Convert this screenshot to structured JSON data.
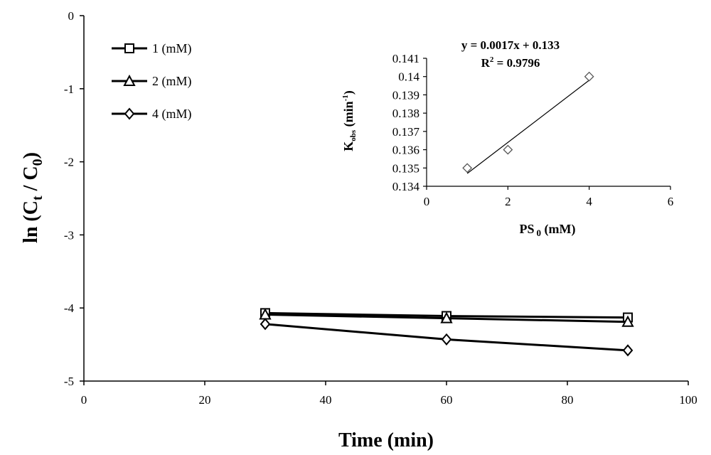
{
  "chart_data": [
    {
      "type": "line",
      "xlabel": "Time (min)",
      "ylabel_main": "ln (C",
      "ylabel_sub1": "t",
      "ylabel_mid": " / C",
      "ylabel_sub2": "0",
      "ylabel_end": ")",
      "xlim": [
        0,
        100
      ],
      "ylim": [
        -5,
        0
      ],
      "xticks": [
        0,
        20,
        40,
        60,
        80,
        100
      ],
      "yticks": [
        0,
        -1,
        -2,
        -3,
        -4,
        -5
      ],
      "grid": false,
      "legend_placement": "top-left",
      "series": [
        {
          "name": "1 (mM)",
          "marker": "square",
          "x": [
            30,
            60,
            90
          ],
          "y": [
            -4.07,
            -4.11,
            -4.13
          ]
        },
        {
          "name": "2 (mM)",
          "marker": "triangle",
          "x": [
            30,
            60,
            90
          ],
          "y": [
            -4.09,
            -4.14,
            -4.19
          ]
        },
        {
          "name": "4 (mM)",
          "marker": "diamond",
          "x": [
            30,
            60,
            90
          ],
          "y": [
            -4.22,
            -4.43,
            -4.58
          ]
        }
      ]
    },
    {
      "type": "scatter",
      "xlabel_main": "PS",
      "xlabel_sub": "0",
      "xlabel_end": " (mM)",
      "ylabel_main": "K",
      "ylabel_sub": "obs",
      "ylabel_mid": " (min",
      "ylabel_sup": "-1",
      "ylabel_end": ")",
      "xlim": [
        0,
        6
      ],
      "ylim": [
        0.134,
        0.141
      ],
      "xticks": [
        0,
        2,
        4,
        6
      ],
      "yticks": [
        0.134,
        0.135,
        0.136,
        0.137,
        0.138,
        0.139,
        0.14,
        0.141
      ],
      "ytick_labels": [
        "0.134",
        "0.135",
        "0.136",
        "0.137",
        "0.138",
        "0.139",
        "0.14",
        "0.141"
      ],
      "points": {
        "x": [
          1,
          2,
          4
        ],
        "y": [
          0.135,
          0.136,
          0.14
        ]
      },
      "trendline": {
        "slope": 0.0017,
        "intercept": 0.133,
        "x_range": [
          1,
          4
        ]
      },
      "equation": "y = 0.0017x + 0.133",
      "r2_main": "R",
      "r2_sup": "2",
      "r2_value": " = 0.9796"
    }
  ]
}
